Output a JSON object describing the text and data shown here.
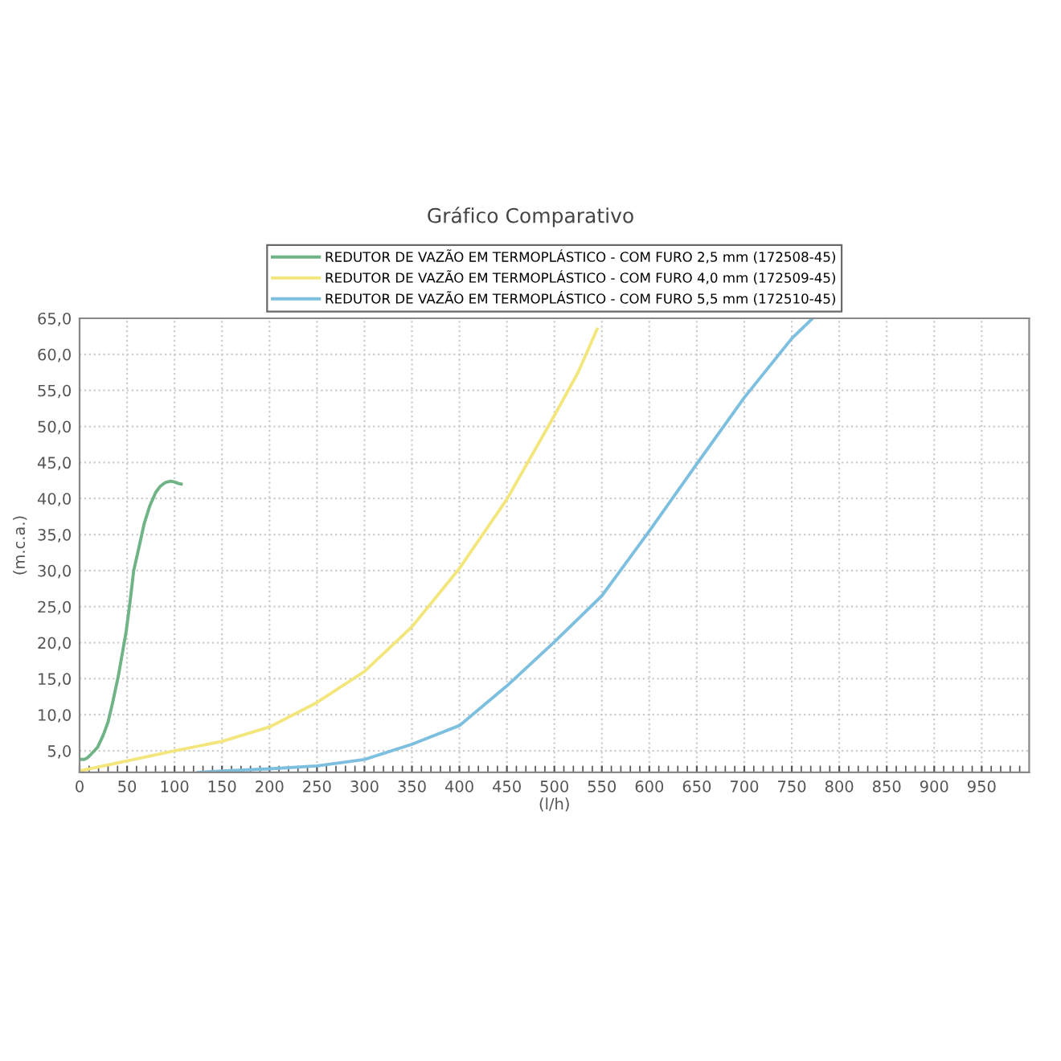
{
  "chart_data": {
    "type": "line",
    "title": "Gráfico Comparativo",
    "xlabel": "(l/h)",
    "ylabel": "(m.c.a.)",
    "xlim": [
      0,
      1000
    ],
    "ylim": [
      2,
      65
    ],
    "xticks": [
      0,
      {
        "value": 10,
        "label": null
      },
      {
        "value": 20,
        "label": null
      },
      {
        "value": 30,
        "label": null
      },
      {
        "value": 40,
        "label": null
      },
      50,
      {
        "value": 60,
        "label": null
      },
      {
        "value": 70,
        "label": null
      },
      {
        "value": 80,
        "label": null
      },
      {
        "value": 90,
        "label": null
      },
      100,
      {
        "value": 110,
        "label": null
      },
      {
        "value": 120,
        "label": null
      },
      {
        "value": 130,
        "label": null
      },
      {
        "value": 140,
        "label": null
      },
      150,
      {
        "value": 160,
        "label": null
      },
      {
        "value": 170,
        "label": null
      },
      {
        "value": 180,
        "label": null
      },
      {
        "value": 190,
        "label": null
      },
      200,
      {
        "value": 210,
        "label": null
      },
      {
        "value": 220,
        "label": null
      },
      {
        "value": 230,
        "label": null
      },
      {
        "value": 240,
        "label": null
      },
      250,
      {
        "value": 260,
        "label": null
      },
      {
        "value": 270,
        "label": null
      },
      {
        "value": 280,
        "label": null
      },
      {
        "value": 290,
        "label": null
      },
      300,
      {
        "value": 310,
        "label": null
      },
      {
        "value": 320,
        "label": null
      },
      {
        "value": 330,
        "label": null
      },
      {
        "value": 340,
        "label": null
      },
      350,
      {
        "value": 360,
        "label": null
      },
      {
        "value": 370,
        "label": null
      },
      {
        "value": 380,
        "label": null
      },
      {
        "value": 390,
        "label": null
      },
      400,
      {
        "value": 410,
        "label": null
      },
      {
        "value": 420,
        "label": null
      },
      {
        "value": 430,
        "label": null
      },
      {
        "value": 440,
        "label": null
      },
      450,
      {
        "value": 460,
        "label": null
      },
      {
        "value": 470,
        "label": null
      },
      {
        "value": 480,
        "label": null
      },
      {
        "value": 490,
        "label": null
      },
      500,
      {
        "value": 510,
        "label": null
      },
      {
        "value": 520,
        "label": null
      },
      {
        "value": 530,
        "label": null
      },
      {
        "value": 540,
        "label": null
      },
      550,
      {
        "value": 560,
        "label": null
      },
      {
        "value": 570,
        "label": null
      },
      {
        "value": 580,
        "label": null
      },
      {
        "value": 590,
        "label": null
      },
      600,
      {
        "value": 610,
        "label": null
      },
      {
        "value": 620,
        "label": null
      },
      {
        "value": 630,
        "label": null
      },
      {
        "value": 640,
        "label": null
      },
      650,
      {
        "value": 660,
        "label": null
      },
      {
        "value": 670,
        "label": null
      },
      {
        "value": 680,
        "label": null
      },
      {
        "value": 690,
        "label": null
      },
      700,
      {
        "value": 710,
        "label": null
      },
      {
        "value": 720,
        "label": null
      },
      {
        "value": 730,
        "label": null
      },
      {
        "value": 740,
        "label": null
      },
      750,
      {
        "value": 760,
        "label": null
      },
      {
        "value": 770,
        "label": null
      },
      {
        "value": 780,
        "label": null
      },
      {
        "value": 790,
        "label": null
      },
      800,
      {
        "value": 810,
        "label": null
      },
      {
        "value": 820,
        "label": null
      },
      {
        "value": 830,
        "label": null
      },
      {
        "value": 840,
        "label": null
      },
      850,
      {
        "value": 860,
        "label": null
      },
      {
        "value": 870,
        "label": null
      },
      {
        "value": 880,
        "label": null
      },
      {
        "value": 890,
        "label": null
      },
      900,
      {
        "value": 910,
        "label": null
      },
      {
        "value": 920,
        "label": null
      },
      {
        "value": 930,
        "label": null
      },
      {
        "value": 940,
        "label": null
      },
      950,
      {
        "value": 960,
        "label": null
      },
      {
        "value": 970,
        "label": null
      },
      {
        "value": 980,
        "label": null
      },
      {
        "value": 990,
        "label": null
      }
    ],
    "yticks": [
      {
        "value": 5,
        "label": "5,0"
      },
      {
        "value": 10,
        "label": "10,0"
      },
      {
        "value": 15,
        "label": "15,0"
      },
      {
        "value": 20,
        "label": "20,0"
      },
      {
        "value": 25,
        "label": "25,0"
      },
      {
        "value": 30,
        "label": "30,0"
      },
      {
        "value": 35,
        "label": "35,0"
      },
      {
        "value": 40,
        "label": "40,0"
      },
      {
        "value": 45,
        "label": "45,0"
      },
      {
        "value": 50,
        "label": "50,0"
      },
      {
        "value": 55,
        "label": "55,0"
      },
      {
        "value": 60,
        "label": "60,0"
      },
      {
        "value": 65,
        "label": "65,0"
      }
    ],
    "grid": true,
    "legend": "top",
    "marker": "none",
    "line_style": "solid",
    "series": [
      {
        "name": "REDUTOR DE VAZÃO EM TERMOPLÁSTICO - COM FURO 2,5 mm (172508-45)",
        "color": "#6fb386",
        "x": [
          0,
          5,
          8,
          12,
          19,
          25,
          30,
          35,
          41,
          45,
          49,
          53,
          57,
          63,
          68,
          74,
          80,
          85,
          90,
          96,
          100,
          104,
          107
        ],
        "values": [
          3.8,
          3.8,
          4.0,
          4.5,
          5.5,
          7.2,
          9.0,
          11.8,
          15.5,
          18.5,
          21.5,
          25.5,
          30.0,
          33.5,
          36.5,
          39.0,
          40.8,
          41.7,
          42.2,
          42.4,
          42.3,
          42.1,
          42.0
        ]
      },
      {
        "name": "REDUTOR DE VAZÃO EM TERMOPLÁSTICO - COM FURO 4,0 mm (172509-45)",
        "color": "#f3e67c",
        "x": [
          0,
          50,
          100,
          150,
          200,
          250,
          300,
          350,
          400,
          450,
          500,
          525,
          545
        ],
        "values": [
          2.2,
          3.6,
          5.0,
          6.3,
          8.3,
          11.7,
          16.0,
          22.2,
          30.3,
          39.9,
          51.5,
          57.5,
          63.5
        ]
      },
      {
        "name": "REDUTOR DE VAZÃO EM TERMOPLÁSTICO - COM FURO 5,5 mm (172510-45)",
        "color": "#7dbfdf",
        "x": [
          125,
          150,
          200,
          250,
          300,
          350,
          400,
          450,
          500,
          550,
          600,
          650,
          700,
          750,
          772
        ],
        "values": [
          2.0,
          2.2,
          2.5,
          2.9,
          3.8,
          5.9,
          8.5,
          14.0,
          20.1,
          26.5,
          35.5,
          44.8,
          54.0,
          62.2,
          65.0
        ]
      }
    ]
  }
}
